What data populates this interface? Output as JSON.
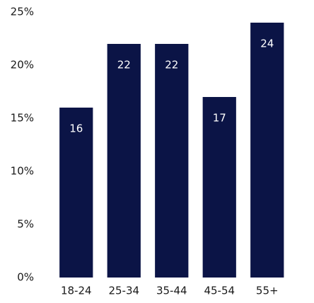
{
  "chart_data": {
    "type": "bar",
    "categories": [
      "18-24",
      "25-34",
      "35-44",
      "45-54",
      "55+"
    ],
    "values": [
      16,
      22,
      22,
      17,
      24
    ],
    "color": "#0b1446",
    "ylim": [
      0,
      25
    ],
    "yticks": [
      {
        "value": 0,
        "label": "0%"
      },
      {
        "value": 5,
        "label": "5%"
      },
      {
        "value": 10,
        "label": "10%"
      },
      {
        "value": 15,
        "label": "15%"
      },
      {
        "value": 20,
        "label": "20%"
      },
      {
        "value": 25,
        "label": "25%"
      }
    ],
    "grid": false
  }
}
